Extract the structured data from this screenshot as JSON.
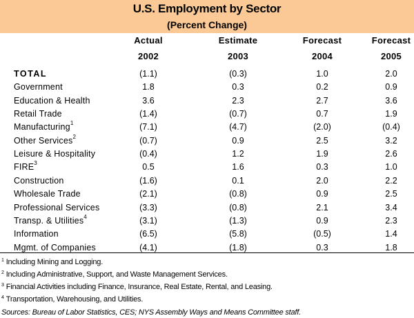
{
  "title": "U.S. Employment by Sector",
  "subtitle": "(Percent Change)",
  "header_color": "#fbc995",
  "columns": [
    {
      "label": "Actual",
      "year": "2002"
    },
    {
      "label": "Estimate",
      "year": "2003"
    },
    {
      "label": "Forecast",
      "year": "2004"
    },
    {
      "label": "Forecast",
      "year": "2005"
    }
  ],
  "rows": [
    {
      "label": "TOTAL",
      "note": "",
      "values": [
        "(1.1)",
        "(0.3)",
        "1.0",
        "2.0"
      ]
    },
    {
      "label": "Government",
      "note": "",
      "values": [
        "1.8",
        "0.3",
        "0.2",
        "0.9"
      ]
    },
    {
      "label": "Education & Health",
      "note": "",
      "values": [
        "3.6",
        "2.3",
        "2.7",
        "3.6"
      ]
    },
    {
      "label": "Retail Trade",
      "note": "",
      "values": [
        "(1.4)",
        "(0.7)",
        "0.7",
        "1.9"
      ]
    },
    {
      "label": "Manufacturing",
      "note": "1",
      "values": [
        "(7.1)",
        "(4.7)",
        "(2.0)",
        "(0.4)"
      ]
    },
    {
      "label": "Other Services",
      "note": "2",
      "values": [
        "(0.7)",
        "0.9",
        "2.5",
        "3.2"
      ]
    },
    {
      "label": "Leisure & Hospitality",
      "note": "",
      "values": [
        "(0.4)",
        "1.2",
        "1.9",
        "2.6"
      ]
    },
    {
      "label": "FIRE",
      "note": "3",
      "values": [
        "0.5",
        "1.6",
        "0.3",
        "1.0"
      ]
    },
    {
      "label": "Construction",
      "note": "",
      "values": [
        "(1.6)",
        "0.1",
        "2.0",
        "2.2"
      ]
    },
    {
      "label": "Wholesale Trade",
      "note": "",
      "values": [
        "(2.1)",
        "(0.8)",
        "0.9",
        "2.5"
      ]
    },
    {
      "label": "Professional Services",
      "note": "",
      "values": [
        "(3.3)",
        "(0.8)",
        "2.1",
        "3.4"
      ]
    },
    {
      "label": "Transp. & Utilities",
      "note": "4",
      "values": [
        "(3.1)",
        "(1.3)",
        "0.9",
        "2.3"
      ]
    },
    {
      "label": "Information",
      "note": "",
      "values": [
        "(6.5)",
        "(5.8)",
        "(0.5)",
        "1.4"
      ]
    },
    {
      "label": "Mgmt. of Companies",
      "note": "",
      "values": [
        "(4.1)",
        "(1.8)",
        "0.3",
        "1.8"
      ]
    }
  ],
  "footnotes": [
    {
      "num": "1",
      "text": "Including Mining and Logging."
    },
    {
      "num": "2",
      "text": "Including Administrative, Support, and Waste Management Services."
    },
    {
      "num": "3",
      "text": "Financial Activities including Finance, Insurance,  Real Estate, Rental, and Leasing."
    },
    {
      "num": "4",
      "text": "Transportation, Warehousing, and Utilities."
    }
  ],
  "sources": "Sources: Bureau of Labor Statistics, CES; NYS Assembly Ways and Means Committee staff."
}
